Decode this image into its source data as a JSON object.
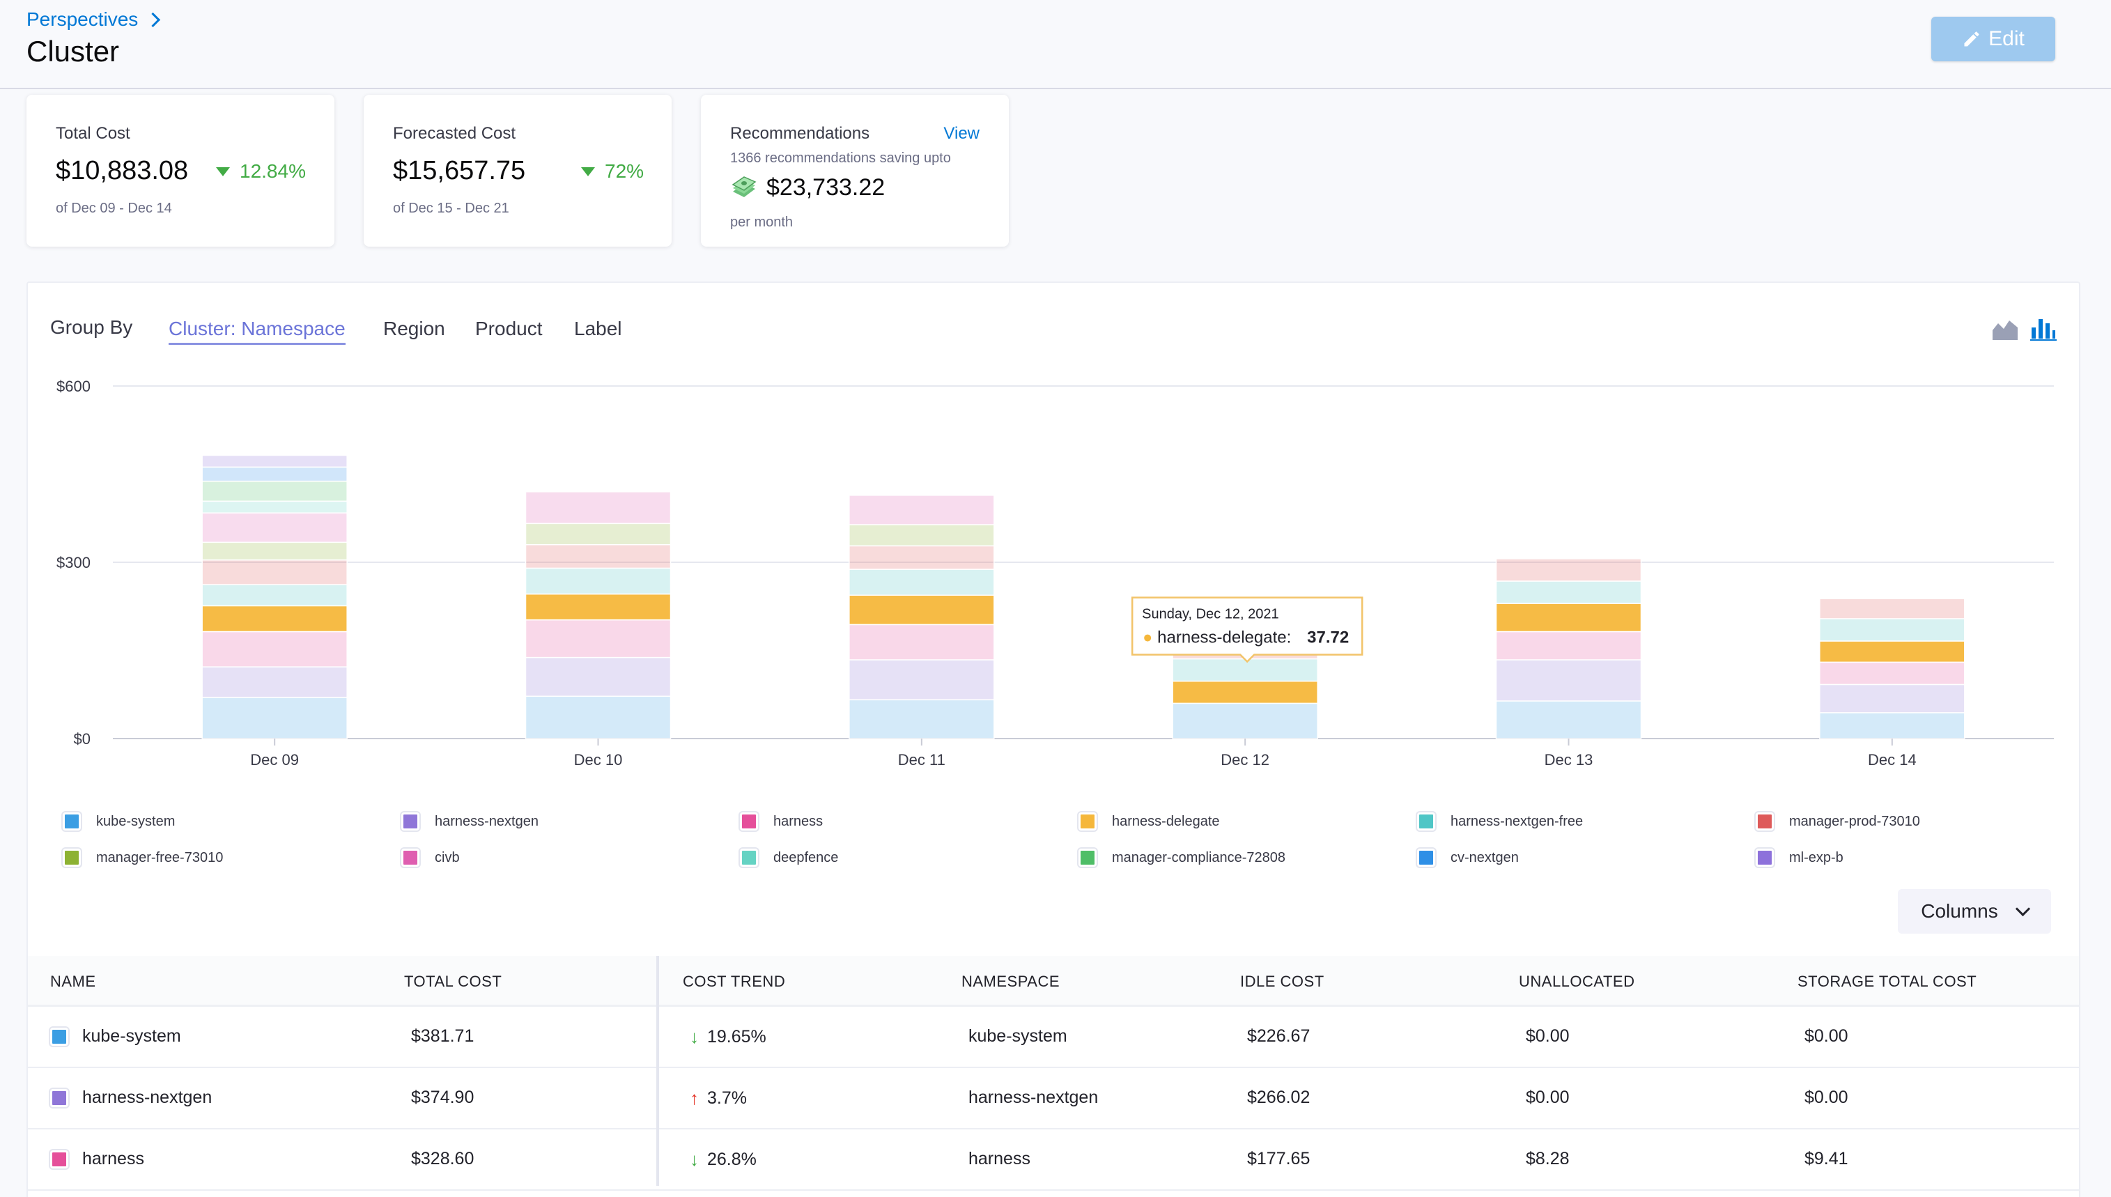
{
  "header": {
    "breadcrumb": "Perspectives",
    "title": "Cluster",
    "edit_label": "Edit"
  },
  "cards": {
    "total_cost": {
      "label": "Total Cost",
      "value": "$10,883.08",
      "trend": "12.84%",
      "sub": "of Dec 09 - Dec 14"
    },
    "forecasted_cost": {
      "label": "Forecasted Cost",
      "value": "$15,657.75",
      "trend": "72%",
      "sub": "of Dec 15 - Dec 21"
    },
    "recommendations": {
      "label": "Recommendations",
      "view": "View",
      "sub": "1366 recommendations saving upto",
      "value": "$23,733.22",
      "per": "per month"
    }
  },
  "groupby": {
    "label": "Group By",
    "tabs": [
      "Cluster: Namespace",
      "Region",
      "Product",
      "Label"
    ],
    "active": "Cluster: Namespace"
  },
  "chart_data": {
    "type": "bar",
    "stacked": true,
    "categories": [
      "Dec 09",
      "Dec 10",
      "Dec 11",
      "Dec 12",
      "Dec 13",
      "Dec 14"
    ],
    "ylim": [
      0,
      600
    ],
    "yticks": [
      "$0",
      "$300",
      "$600"
    ],
    "series": [
      {
        "name": "kube-system",
        "values": [
          70,
          72,
          66,
          60,
          64,
          44
        ]
      },
      {
        "name": "harness-nextgen",
        "values": [
          52,
          66,
          68,
          0,
          70,
          48
        ]
      },
      {
        "name": "harness",
        "values": [
          60,
          64,
          60,
          0,
          48,
          38
        ]
      },
      {
        "name": "harness-delegate",
        "values": [
          44,
          44,
          50,
          37.72,
          48,
          36
        ]
      },
      {
        "name": "harness-nextgen-free",
        "values": [
          36,
          44,
          44,
          38,
          38,
          38
        ]
      },
      {
        "name": "manager-prod-73010",
        "values": [
          42,
          40,
          40,
          36,
          38,
          34
        ]
      },
      {
        "name": "manager-free-73010",
        "values": [
          30,
          36,
          36,
          0,
          0,
          0
        ]
      },
      {
        "name": "civb",
        "values": [
          50,
          54,
          50,
          0,
          0,
          0
        ]
      },
      {
        "name": "deepfence",
        "values": [
          20,
          0,
          0,
          0,
          0,
          0
        ]
      },
      {
        "name": "manager-compliance-72808",
        "values": [
          34,
          0,
          0,
          0,
          0,
          0
        ]
      },
      {
        "name": "cv-nextgen",
        "values": [
          24,
          0,
          0,
          0,
          0,
          0
        ]
      },
      {
        "name": "ml-exp-b",
        "values": [
          20,
          0,
          0,
          0,
          0,
          0
        ]
      }
    ],
    "tooltip": {
      "date": "Sunday, Dec 12, 2021",
      "series": "harness-delegate",
      "value": "37.72"
    }
  },
  "legend": {
    "items": [
      {
        "name": "kube-system",
        "color": "#3b9ee3"
      },
      {
        "name": "harness-nextgen",
        "color": "#8f76d8"
      },
      {
        "name": "harness",
        "color": "#e54f9a"
      },
      {
        "name": "harness-delegate",
        "color": "#f5b73b"
      },
      {
        "name": "harness-nextgen-free",
        "color": "#4fc6c6"
      },
      {
        "name": "manager-prod-73010",
        "color": "#de5a5a"
      },
      {
        "name": "manager-free-73010",
        "color": "#8db233"
      },
      {
        "name": "civb",
        "color": "#df5eb0"
      },
      {
        "name": "deepfence",
        "color": "#65d3c3"
      },
      {
        "name": "manager-compliance-72808",
        "color": "#4fbe67"
      },
      {
        "name": "cv-nextgen",
        "color": "#2e8fe6"
      },
      {
        "name": "ml-exp-b",
        "color": "#8d71db"
      }
    ]
  },
  "columns_label": "Columns",
  "table": {
    "headers": [
      "NAME",
      "TOTAL COST",
      "COST TREND",
      "NAMESPACE",
      "IDLE COST",
      "UNALLOCATED",
      "STORAGE TOTAL COST"
    ],
    "rows": [
      {
        "name": "kube-system",
        "color": "#3b9ee3",
        "total": "$381.71",
        "trend": "19.65%",
        "trend_dir": "down",
        "namespace": "kube-system",
        "idle": "$226.67",
        "unallocated": "$0.00",
        "storage": "$0.00"
      },
      {
        "name": "harness-nextgen",
        "color": "#8f76d8",
        "total": "$374.90",
        "trend": "3.7%",
        "trend_dir": "up",
        "namespace": "harness-nextgen",
        "idle": "$266.02",
        "unallocated": "$0.00",
        "storage": "$0.00"
      },
      {
        "name": "harness",
        "color": "#e54f9a",
        "total": "$328.60",
        "trend": "26.8%",
        "trend_dir": "down",
        "namespace": "harness",
        "idle": "$177.65",
        "unallocated": "$8.28",
        "storage": "$9.41"
      }
    ]
  }
}
